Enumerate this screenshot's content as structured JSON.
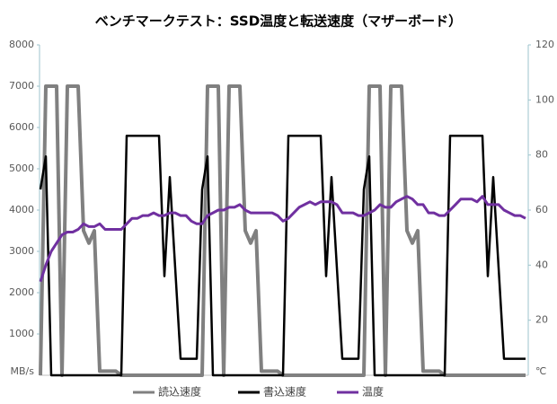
{
  "chart_data": {
    "type": "line",
    "title": "ベンチマークテスト：SSD温度と転送速度（マザーボード）",
    "y_unit": "MB/s",
    "y2_unit": "℃",
    "ylim": [
      0,
      8000
    ],
    "yticks": [
      1000,
      2000,
      3000,
      4000,
      5000,
      6000,
      7000,
      8000
    ],
    "y2lim": [
      0,
      120
    ],
    "y2ticks": [
      20,
      40,
      60,
      80,
      100,
      120
    ],
    "series": [
      {
        "name": "読込速度",
        "color": "#808080",
        "values": [
          0,
          7000,
          7000,
          7000,
          0,
          7000,
          7000,
          7000,
          3500,
          3200,
          3500,
          100,
          100,
          100,
          100,
          0,
          0,
          0,
          0,
          0,
          0,
          0,
          0,
          0,
          0,
          0,
          0,
          0,
          0,
          0,
          0,
          7000,
          7000,
          7000,
          0,
          7000,
          7000,
          7000,
          3500,
          3200,
          3500,
          100,
          100,
          100,
          100,
          0,
          0,
          0,
          0,
          0,
          0,
          0,
          0,
          0,
          0,
          0,
          0,
          0,
          0,
          0,
          0,
          7000,
          7000,
          7000,
          0,
          7000,
          7000,
          7000,
          3500,
          3200,
          3500,
          100,
          100,
          100,
          100,
          0,
          0,
          0,
          0,
          0,
          0,
          0,
          0,
          0,
          0,
          0,
          0,
          0,
          0,
          0,
          0
        ]
      },
      {
        "name": "書込速度",
        "color": "#000000",
        "values": [
          4500,
          5300,
          0,
          0,
          0,
          0,
          0,
          0,
          0,
          0,
          0,
          0,
          0,
          0,
          0,
          0,
          5800,
          5800,
          5800,
          5800,
          5800,
          5800,
          5800,
          2400,
          4800,
          2600,
          400,
          400,
          400,
          400,
          4500,
          5300,
          0,
          0,
          0,
          0,
          0,
          0,
          0,
          0,
          0,
          0,
          0,
          0,
          0,
          0,
          5800,
          5800,
          5800,
          5800,
          5800,
          5800,
          5800,
          2400,
          4800,
          2600,
          400,
          400,
          400,
          400,
          4500,
          5300,
          0,
          0,
          0,
          0,
          0,
          0,
          0,
          0,
          0,
          0,
          0,
          0,
          0,
          0,
          5800,
          5800,
          5800,
          5800,
          5800,
          5800,
          5800,
          2400,
          4800,
          2600,
          400,
          400,
          400,
          400,
          400
        ]
      },
      {
        "name": "温度",
        "color": "#7030a0",
        "axis": "y2",
        "values": [
          34,
          40,
          45,
          48,
          51,
          52,
          52,
          53,
          55,
          54,
          54,
          55,
          53,
          53,
          53,
          53,
          55,
          57,
          57,
          58,
          58,
          59,
          58,
          58,
          59,
          59,
          58,
          58,
          56,
          55,
          55,
          58,
          59,
          60,
          60,
          61,
          61,
          62,
          60,
          59,
          59,
          59,
          59,
          59,
          58,
          56,
          57,
          59,
          61,
          62,
          63,
          62,
          63,
          63,
          63,
          62,
          59,
          59,
          59,
          58,
          58,
          59,
          60,
          62,
          61,
          61,
          63,
          64,
          65,
          64,
          62,
          62,
          59,
          59,
          58,
          58,
          60,
          62,
          64,
          64,
          64,
          63,
          65,
          62,
          62,
          62,
          60,
          59,
          58,
          58,
          57
        ]
      }
    ]
  }
}
